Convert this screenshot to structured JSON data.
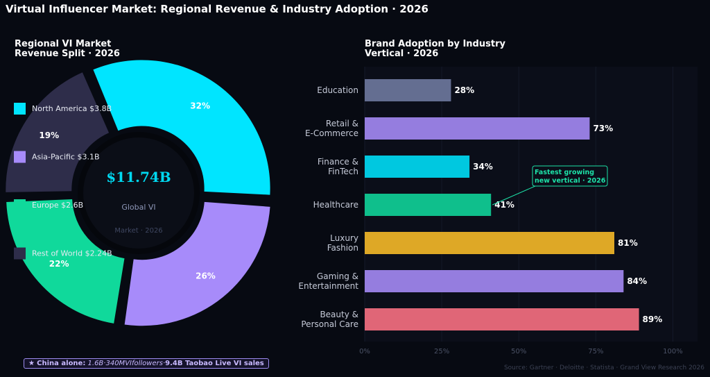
{
  "page_title": "Virtual Influencer Market: Regional Revenue & Industry Adoption · 2026",
  "footnote": {
    "star": "★",
    "prefix": "China alone:",
    "middle": "1.6B·340MVIfollowers·",
    "suffix": "9.4B Taobao Live VI sales"
  },
  "source": "Source: Gartner · Deloitte · Statista · Grand View Research 2026",
  "chart_data": [
    {
      "type": "pie",
      "style": "donut",
      "title": "Regional VI Market\nRevenue Split · 2026",
      "center_value": "$11.74B",
      "center_label": "Global VI",
      "center_sublabel": "Market · 2026",
      "legend_position": "left",
      "slices": [
        {
          "name": "North America",
          "label": "North America  $3.8B",
          "value": 3.8,
          "percent_label": "32%",
          "color": "#00e5ff"
        },
        {
          "name": "Asia-Pacific",
          "label": "Asia-Pacific  $3.1B",
          "value": 3.1,
          "percent_label": "26%",
          "color": "#a78bfa"
        },
        {
          "name": "Europe",
          "label": "Europe  $2.6B",
          "value": 2.6,
          "percent_label": "22%",
          "color": "#10d99b"
        },
        {
          "name": "Rest of World",
          "label": "Rest of World  $2.24B",
          "value": 2.24,
          "percent_label": "19%",
          "color": "#2e2d4a"
        }
      ]
    },
    {
      "type": "bar",
      "orientation": "horizontal",
      "title": "Brand Adoption by Industry\nVertical · 2026",
      "xlim": [
        0,
        108
      ],
      "xticks": [
        "0%",
        "25%",
        "50%",
        "75%",
        "100%"
      ],
      "xtick_values": [
        0,
        25,
        50,
        75,
        100
      ],
      "grid": "vertical",
      "bars": [
        {
          "category": "Education",
          "value": 28,
          "label": "28%",
          "color": "#646e91"
        },
        {
          "category": "Retail &\nE-Commerce",
          "value": 73,
          "label": "73%",
          "color": "#957ddf"
        },
        {
          "category": "Finance &\nFinTech",
          "value": 34,
          "label": "34%",
          "color": "#00c8e0"
        },
        {
          "category": "Healthcare",
          "value": 41,
          "label": "41%",
          "color": "#0fbf8c"
        },
        {
          "category": "Luxury\nFashion",
          "value": 81,
          "label": "81%",
          "color": "#dea826"
        },
        {
          "category": "Gaming &\nEntertainment",
          "value": 84,
          "label": "84%",
          "color": "#957ddf"
        },
        {
          "category": "Beauty &\nPersonal Care",
          "value": 89,
          "label": "89%",
          "color": "#e06677"
        }
      ],
      "annotation": {
        "text": "Fastest growing\nnew vertical · 2026",
        "target": "Healthcare",
        "color": "#1de2a8"
      }
    }
  ]
}
